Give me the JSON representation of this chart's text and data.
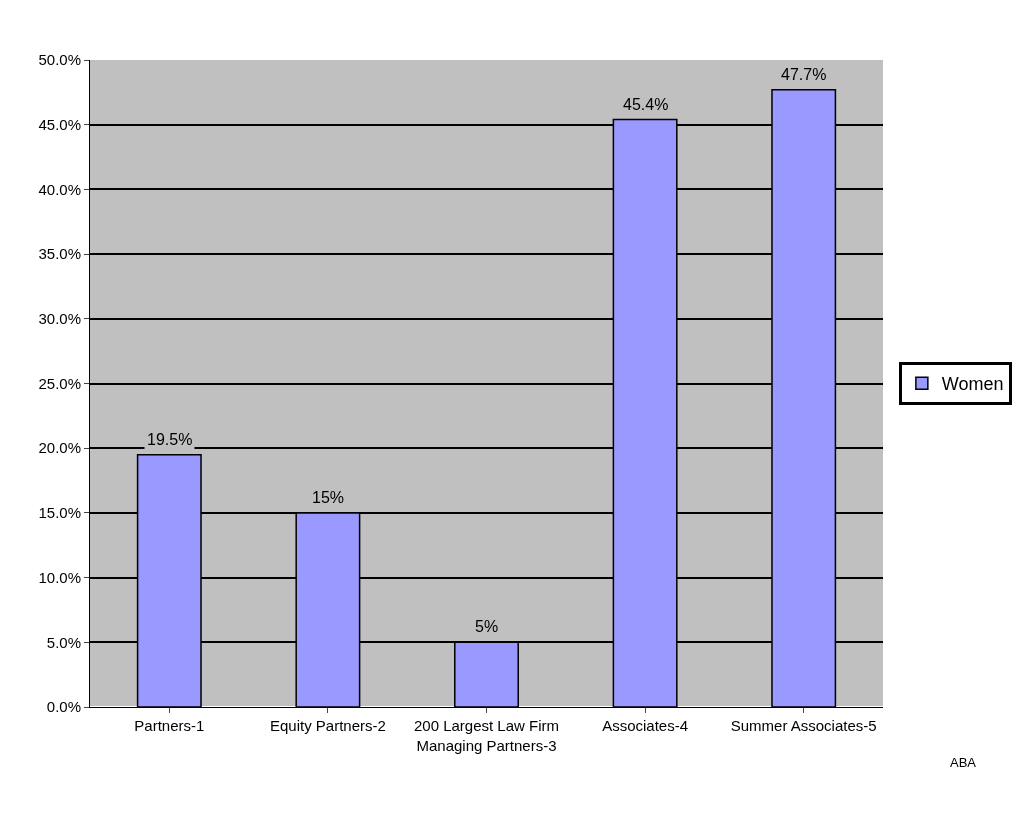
{
  "chart_data": {
    "type": "bar",
    "categories": [
      "Partners-1",
      "Equity Partners-2",
      "200 Largest Law Firm\nManaging Partners-3",
      "Associates-4",
      "Summer Associates-5"
    ],
    "series": [
      {
        "name": "Women",
        "color": "#9999ff",
        "values": [
          19.5,
          15,
          5,
          45.4,
          47.7
        ],
        "value_labels": [
          "19.5%",
          "15%",
          "5%",
          "45.4%",
          "47.7%"
        ]
      }
    ],
    "ylim": [
      0,
      50
    ],
    "yticks": [
      {
        "value": 0,
        "label": "0.0%"
      },
      {
        "value": 5,
        "label": "5.0%"
      },
      {
        "value": 10,
        "label": "10.0%"
      },
      {
        "value": 15,
        "label": "15.0%"
      },
      {
        "value": 20,
        "label": "20.0%"
      },
      {
        "value": 25,
        "label": "25.0%"
      },
      {
        "value": 30,
        "label": "30.0%"
      },
      {
        "value": 35,
        "label": "35.0%"
      },
      {
        "value": 40,
        "label": "40.0%"
      },
      {
        "value": 45,
        "label": "45.0%"
      },
      {
        "value": 50,
        "label": "50.0%"
      }
    ],
    "grid": "y",
    "legend": "right",
    "annotations": [
      "ABA"
    ]
  }
}
